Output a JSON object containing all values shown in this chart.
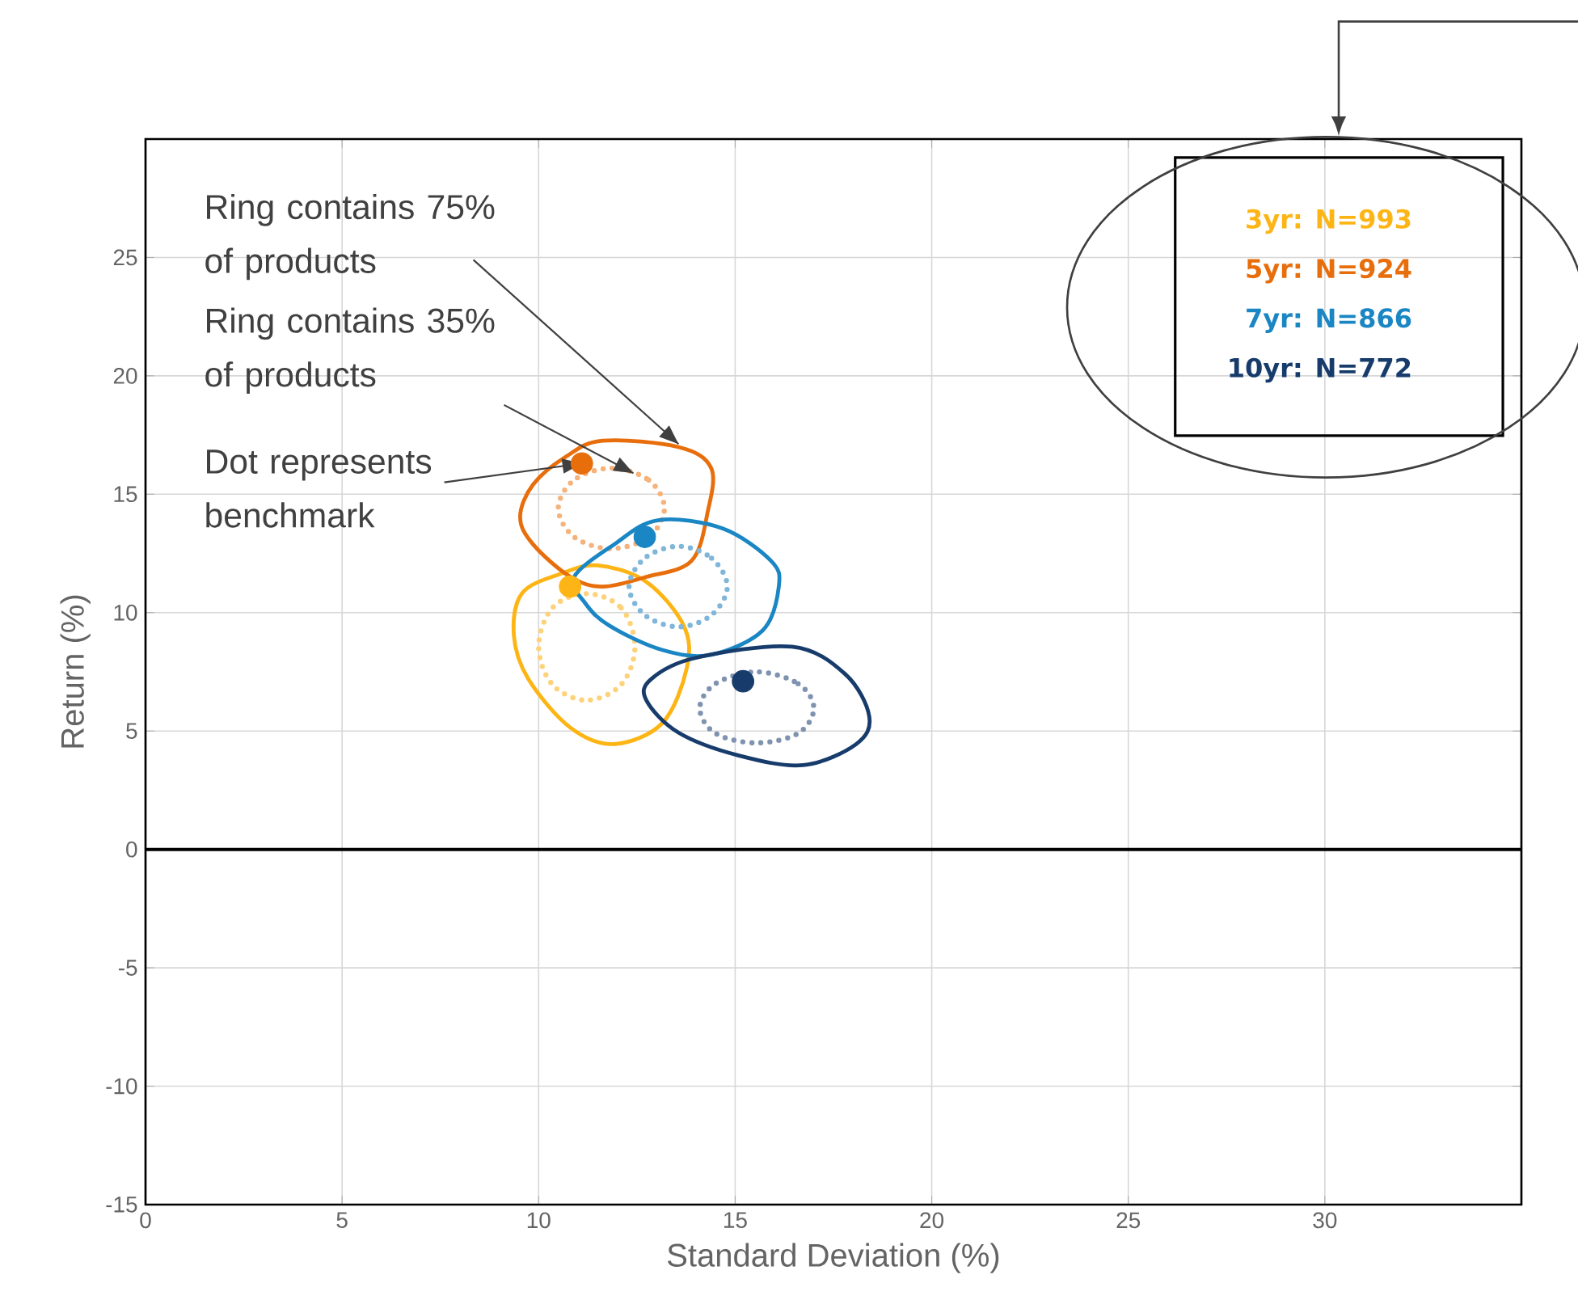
{
  "chart_data": {
    "type": "scatter",
    "xlabel": "Standard Deviation (%)",
    "ylabel": "Return (%)",
    "xlim": [
      0,
      35
    ],
    "ylim": [
      -15,
      30
    ],
    "xticks": [
      0,
      5,
      10,
      15,
      20,
      25,
      30
    ],
    "yticks": [
      -15,
      -10,
      -5,
      0,
      5,
      10,
      15,
      20,
      25
    ],
    "grid": true,
    "legend": "top right",
    "marker": "circle",
    "ref_lines": [
      {
        "axis": "y",
        "value": 0,
        "color": "#000000"
      }
    ],
    "annotations": [
      "Ring contains 75% of products",
      "Ring contains 35% of products",
      {
        "text": "Dot represents benchmark",
        "x": 11.1,
        "y": 16.3
      }
    ],
    "series": [
      {
        "name": "3yr: N=993",
        "color": "#fdb515",
        "x": [
          10.8
        ],
        "values": [
          11.1
        ]
      },
      {
        "name": "5yr: N=924",
        "color": "#e86e0c",
        "x": [
          11.1
        ],
        "values": [
          16.3
        ]
      },
      {
        "name": "7yr: N=866",
        "color": "#1a86c4",
        "x": [
          12.7
        ],
        "values": [
          13.2
        ]
      },
      {
        "name": "10yr: N=772",
        "color": "#173c6c",
        "x": [
          15.2
        ],
        "values": [
          7.1
        ]
      }
    ]
  }
}
